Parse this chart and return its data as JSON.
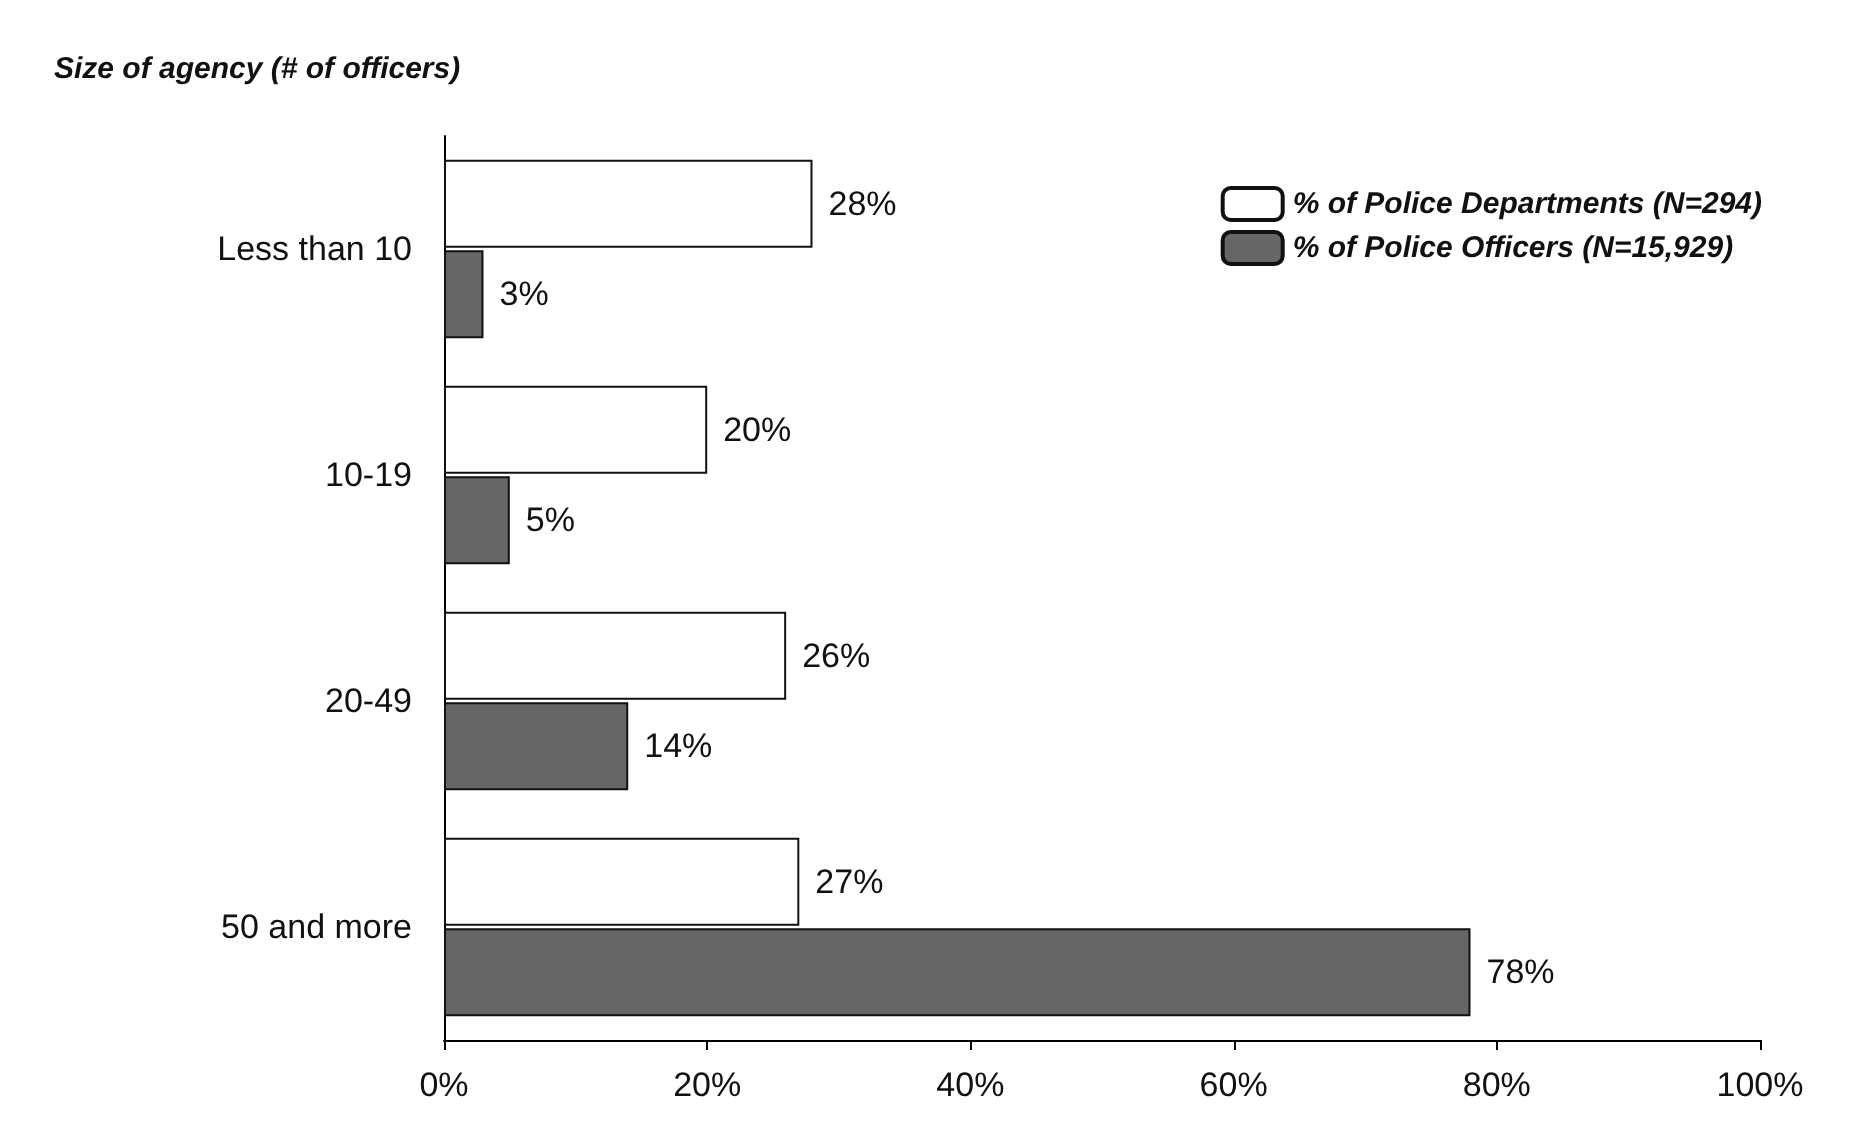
{
  "chart_data": {
    "type": "bar",
    "orientation": "horizontal",
    "ylabel": "Size of agency (# of officers)",
    "categories": [
      "Less than 10",
      "10-19",
      "20-49",
      "50 and more"
    ],
    "series": [
      {
        "name": "% of Police Departments (N=294)",
        "color": "#ffffff",
        "values": [
          28,
          20,
          26,
          27
        ],
        "value_labels": [
          "28%",
          "20%",
          "26%",
          "27%"
        ]
      },
      {
        "name": "% of Police Officers (N=15,929)",
        "color": "#666666",
        "values": [
          3,
          5,
          14,
          78
        ],
        "value_labels": [
          "3%",
          "5%",
          "14%",
          "78%"
        ]
      }
    ],
    "xlim": [
      0,
      100
    ],
    "xticks": [
      {
        "value": 0,
        "label": "0%"
      },
      {
        "value": 20,
        "label": "20%"
      },
      {
        "value": 40,
        "label": "40%"
      },
      {
        "value": 60,
        "label": "60%"
      },
      {
        "value": 80,
        "label": "80%"
      },
      {
        "value": 100,
        "label": "100%"
      }
    ],
    "grid": false,
    "legend": "top right"
  }
}
